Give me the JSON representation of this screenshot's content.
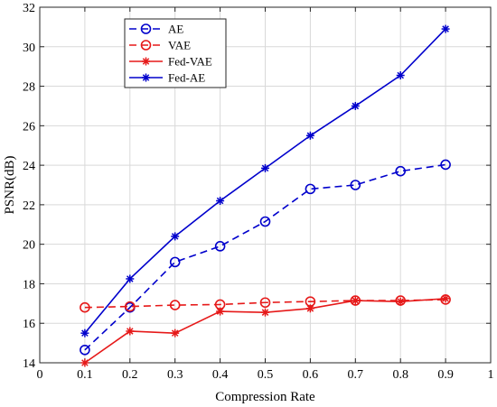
{
  "chart_data": {
    "type": "line",
    "title": "",
    "xlabel": "Compression Rate",
    "ylabel": "PSNR(dB)",
    "xlim": [
      0,
      1
    ],
    "ylim": [
      14,
      32
    ],
    "xticks": [
      0,
      0.1,
      0.2,
      0.3,
      0.4,
      0.5,
      0.6,
      0.7,
      0.8,
      0.9,
      1
    ],
    "xtick_labels": [
      "0",
      "0.1",
      "0.2",
      "0.3",
      "0.4",
      "0.5",
      "0.6",
      "0.7",
      "0.8",
      "0.9",
      "1"
    ],
    "yticks": [
      14,
      16,
      18,
      20,
      22,
      24,
      26,
      28,
      30,
      32
    ],
    "ytick_labels": [
      "14",
      "16",
      "18",
      "20",
      "22",
      "24",
      "26",
      "28",
      "30",
      "32"
    ],
    "grid": true,
    "legend_position": "top-left",
    "x": [
      0.1,
      0.2,
      0.3,
      0.4,
      0.5,
      0.6,
      0.7,
      0.8,
      0.9
    ],
    "series": [
      {
        "name": "AE",
        "color": "#0000cc",
        "dash": true,
        "marker": "circle",
        "values": [
          14.65,
          16.8,
          19.1,
          19.9,
          21.15,
          22.8,
          23.0,
          23.7,
          24.03
        ]
      },
      {
        "name": "VAE",
        "color": "#e61919",
        "dash": true,
        "marker": "circle",
        "values": [
          16.8,
          16.85,
          16.92,
          16.95,
          17.05,
          17.1,
          17.15,
          17.15,
          17.2
        ]
      },
      {
        "name": "Fed-VAE",
        "color": "#e61919",
        "dash": false,
        "marker": "star",
        "values": [
          14.0,
          15.6,
          15.5,
          16.6,
          16.55,
          16.75,
          17.15,
          17.1,
          17.25
        ]
      },
      {
        "name": "Fed-AE",
        "color": "#0000cc",
        "dash": false,
        "marker": "star",
        "values": [
          15.5,
          18.25,
          20.4,
          22.2,
          23.85,
          25.5,
          27.0,
          28.55,
          30.9
        ]
      }
    ]
  }
}
